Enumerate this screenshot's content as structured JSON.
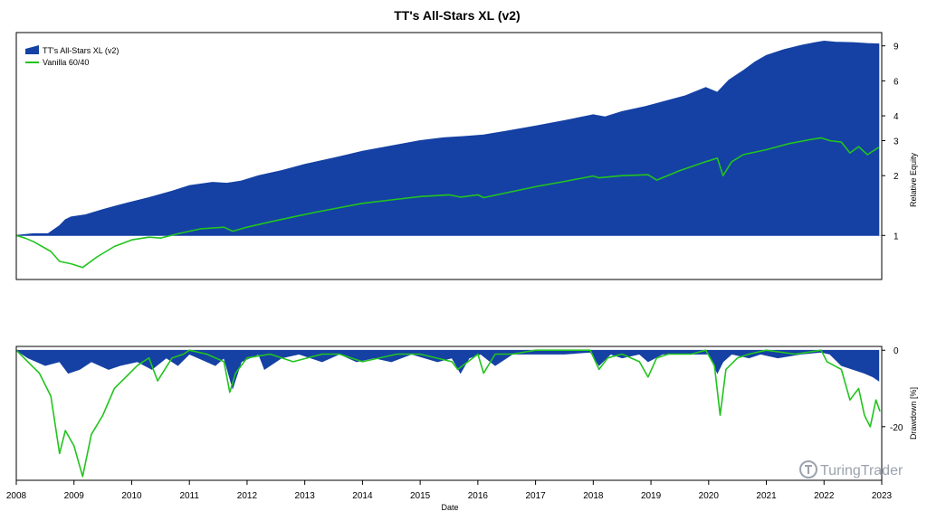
{
  "chart_data": {
    "type": "area",
    "title": "TT's All-Stars XL (v2)",
    "xlabel": "Date",
    "x_ticks": [
      "2008",
      "2009",
      "2010",
      "2011",
      "2012",
      "2013",
      "2014",
      "2015",
      "2016",
      "2017",
      "2018",
      "2019",
      "2020",
      "2021",
      "2022",
      "2023"
    ],
    "xlim": [
      2008.0,
      2023.0
    ],
    "colors": {
      "strategy": "#1541a4",
      "benchmark": "#22c41e"
    },
    "legend": {
      "position": "top-left",
      "entries": [
        {
          "name": "TT's All-Stars XL (v2)",
          "style": "area",
          "color": "#1541a4"
        },
        {
          "name": "Vanilla 60/40",
          "style": "line",
          "color": "#22c41e"
        }
      ]
    },
    "panels": [
      {
        "name": "equity",
        "ylabel": "Relative Equity",
        "yscale": "log",
        "ylim": [
          0.6,
          10.5
        ],
        "y_ticks": [
          1,
          2,
          3,
          4,
          6,
          9
        ],
        "series": [
          {
            "name": "TT's All-Stars XL (v2)",
            "type": "area",
            "x": [
              2008.0,
              2008.3,
              2008.55,
              2008.75,
              2008.85,
              2008.95,
              2009.2,
              2009.5,
              2009.9,
              2010.3,
              2010.7,
              2011.0,
              2011.4,
              2011.65,
              2011.9,
              2012.2,
              2012.6,
              2013.0,
              2013.5,
              2014.0,
              2014.5,
              2015.0,
              2015.4,
              2015.8,
              2016.1,
              2016.5,
              2017.0,
              2017.5,
              2018.0,
              2018.2,
              2018.5,
              2018.9,
              2019.2,
              2019.6,
              2019.95,
              2020.15,
              2020.35,
              2020.6,
              2020.8,
              2021.0,
              2021.3,
              2021.6,
              2021.85,
              2022.0,
              2022.2,
              2022.5,
              2022.75,
              2022.95
            ],
            "values": [
              1.0,
              1.02,
              1.02,
              1.12,
              1.2,
              1.24,
              1.27,
              1.35,
              1.45,
              1.55,
              1.67,
              1.78,
              1.85,
              1.83,
              1.88,
              2.0,
              2.12,
              2.28,
              2.45,
              2.65,
              2.82,
              3.0,
              3.1,
              3.15,
              3.2,
              3.35,
              3.55,
              3.78,
              4.05,
              3.95,
              4.2,
              4.45,
              4.7,
              5.05,
              5.55,
              5.25,
              6.05,
              6.75,
              7.45,
              8.05,
              8.6,
              9.05,
              9.35,
              9.5,
              9.4,
              9.35,
              9.25,
              9.2
            ]
          },
          {
            "name": "Vanilla 60/40",
            "type": "line",
            "x": [
              2008.0,
              2008.15,
              2008.3,
              2008.6,
              2008.75,
              2008.95,
              2009.15,
              2009.4,
              2009.7,
              2010.0,
              2010.3,
              2010.5,
              2010.8,
              2011.2,
              2011.6,
              2011.75,
              2012.0,
              2012.4,
              2012.8,
              2013.2,
              2013.6,
              2014.0,
              2014.5,
              2015.0,
              2015.5,
              2015.7,
              2016.0,
              2016.1,
              2016.5,
              2017.0,
              2017.5,
              2018.0,
              2018.1,
              2018.5,
              2018.95,
              2019.1,
              2019.5,
              2019.95,
              2020.15,
              2020.25,
              2020.4,
              2020.6,
              2021.0,
              2021.4,
              2021.8,
              2021.95,
              2022.1,
              2022.3,
              2022.45,
              2022.6,
              2022.75,
              2022.95
            ],
            "values": [
              1.0,
              0.97,
              0.93,
              0.83,
              0.74,
              0.72,
              0.69,
              0.78,
              0.88,
              0.95,
              0.98,
              0.97,
              1.02,
              1.08,
              1.1,
              1.05,
              1.1,
              1.17,
              1.24,
              1.31,
              1.38,
              1.45,
              1.51,
              1.57,
              1.6,
              1.56,
              1.6,
              1.55,
              1.64,
              1.76,
              1.87,
              1.99,
              1.95,
              2.0,
              2.02,
              1.9,
              2.12,
              2.35,
              2.45,
              2.0,
              2.35,
              2.55,
              2.7,
              2.9,
              3.05,
              3.1,
              3.0,
              2.95,
              2.6,
              2.8,
              2.55,
              2.78
            ]
          }
        ]
      },
      {
        "name": "drawdown",
        "ylabel": "Drawdown [%]",
        "ylim": [
          -34,
          1
        ],
        "y_ticks": [
          0,
          -20
        ],
        "series": [
          {
            "name": "TT's All-Stars XL (v2)",
            "type": "area",
            "x": [
              2008.0,
              2008.2,
              2008.5,
              2008.75,
              2008.9,
              2009.1,
              2009.3,
              2009.6,
              2009.8,
              2010.1,
              2010.35,
              2010.6,
              2010.8,
              2011.0,
              2011.3,
              2011.45,
              2011.6,
              2011.75,
              2011.9,
              2012.2,
              2012.3,
              2012.6,
              2012.9,
              2013.3,
              2013.6,
              2013.9,
              2014.2,
              2014.5,
              2014.85,
              2015.3,
              2015.55,
              2015.7,
              2015.85,
              2016.05,
              2016.3,
              2016.6,
              2017.0,
              2017.5,
              2017.95,
              2018.1,
              2018.3,
              2018.5,
              2018.8,
              2018.95,
              2019.2,
              2019.6,
              2020.0,
              2020.15,
              2020.25,
              2020.4,
              2020.7,
              2020.9,
              2021.2,
              2021.6,
              2021.95,
              2022.1,
              2022.3,
              2022.5,
              2022.7,
              2022.85,
              2022.95
            ],
            "values": [
              0,
              -2,
              -4,
              -3,
              -6,
              -5,
              -3,
              -5,
              -4,
              -3,
              -5,
              -2,
              -4,
              -1,
              -3,
              -4,
              -2,
              -10,
              -3,
              -1,
              -5,
              -2,
              -1,
              -3,
              -1,
              -3,
              -2,
              -3,
              -1,
              -3,
              -2,
              -6,
              -2,
              -1,
              -4,
              -1,
              -1,
              -1,
              -0.5,
              -4,
              -1,
              -2,
              -1,
              -3,
              -1,
              -1,
              -1,
              -6,
              -3,
              -1,
              -2,
              -1,
              -2,
              -1,
              -0.5,
              -1,
              -4,
              -5,
              -6,
              -7,
              -8
            ]
          },
          {
            "name": "Vanilla 60/40",
            "type": "line",
            "x": [
              2008.0,
              2008.2,
              2008.4,
              2008.6,
              2008.75,
              2008.85,
              2009.0,
              2009.15,
              2009.3,
              2009.5,
              2009.7,
              2009.9,
              2010.1,
              2010.3,
              2010.45,
              2010.7,
              2010.9,
              2011.0,
              2011.3,
              2011.6,
              2011.7,
              2011.8,
              2012.0,
              2012.4,
              2012.8,
              2013.3,
              2013.6,
              2014.0,
              2014.6,
              2015.0,
              2015.55,
              2015.65,
              2016.0,
              2016.1,
              2016.3,
              2016.6,
              2017.0,
              2017.5,
              2017.95,
              2018.1,
              2018.25,
              2018.5,
              2018.8,
              2018.95,
              2019.1,
              2019.3,
              2019.7,
              2019.95,
              2020.1,
              2020.2,
              2020.3,
              2020.5,
              2020.7,
              2021.0,
              2021.5,
              2021.95,
              2022.05,
              2022.3,
              2022.45,
              2022.6,
              2022.7,
              2022.8,
              2022.9,
              2022.97
            ],
            "values": [
              0,
              -3,
              -6,
              -12,
              -27,
              -21,
              -25,
              -33,
              -22,
              -17,
              -10,
              -7,
              -4,
              -2,
              -8,
              -2,
              -1,
              0,
              -1,
              -3,
              -11,
              -6,
              -2,
              -1,
              -3,
              -1,
              -1,
              -3,
              -1,
              -1,
              -3,
              -5,
              -1,
              -6,
              -1,
              -1,
              0,
              0,
              0,
              -5,
              -2,
              -1,
              -3,
              -7,
              -2,
              -1,
              -1,
              0,
              -4,
              -17,
              -5,
              -2,
              -1,
              0,
              -1,
              0,
              -3,
              -5,
              -13,
              -10,
              -17,
              -20,
              -13,
              -16
            ]
          }
        ]
      }
    ],
    "watermark": "TuringTrader",
    "watermark_icon": "turingtrader-logo-icon"
  }
}
